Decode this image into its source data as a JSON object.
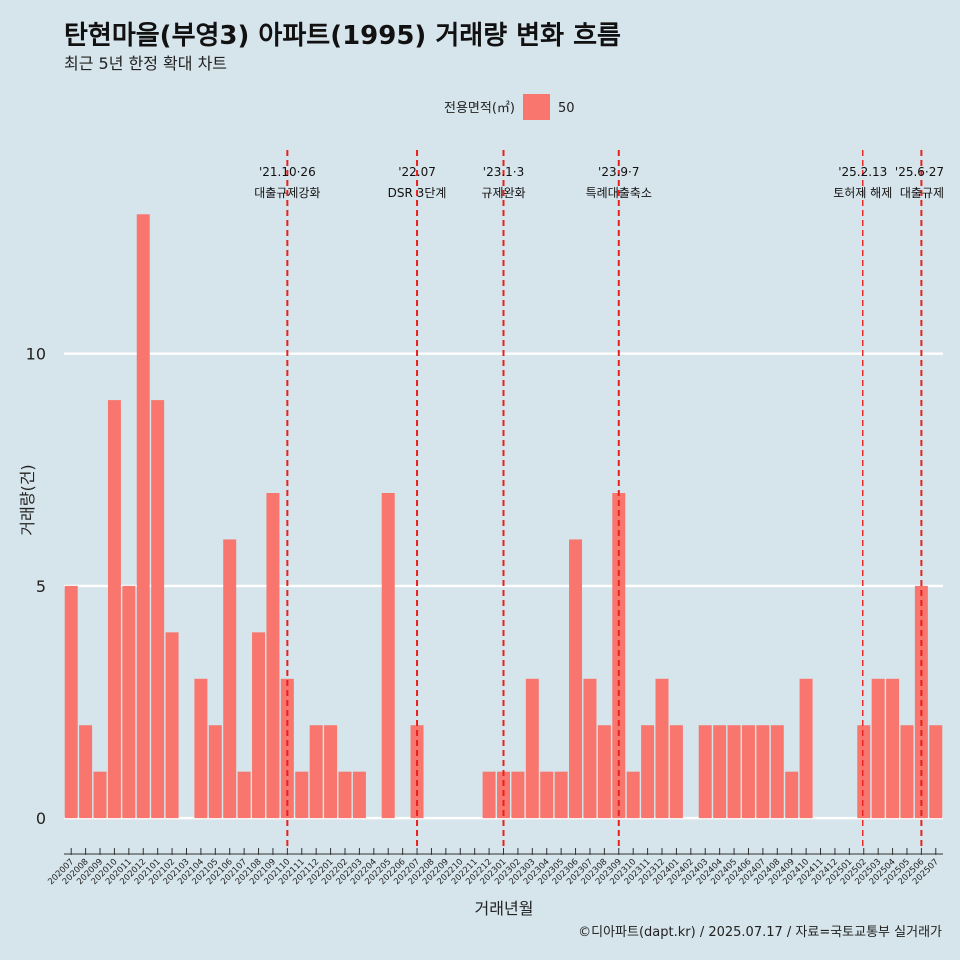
{
  "header": {
    "title": "탄현마을(부영3) 아파트(1995) 거래량 변화 흐름",
    "subtitle": "최근 5년 한정 확대 차트"
  },
  "legend": {
    "title": "전용면적(㎡)",
    "items": [
      {
        "label": "50",
        "color": "#f8766d"
      }
    ],
    "placement": "top"
  },
  "caption": "©디아파트(dapt.kr) / 2025.07.17 / 자료=국토교통부 실거래가",
  "chart_data": {
    "type": "bar",
    "xlabel": "거래년월",
    "ylabel": "거래량(건)",
    "ylim": [
      -0.6,
      14.6
    ],
    "yticks": [
      0,
      5,
      10
    ],
    "grid": "horizontal-major",
    "bar_color": "#f8766d",
    "categories": [
      "202007",
      "202008",
      "202009",
      "202010",
      "202011",
      "202012",
      "202101",
      "202102",
      "202103",
      "202104",
      "202105",
      "202106",
      "202107",
      "202108",
      "202109",
      "202110",
      "202111",
      "202112",
      "202201",
      "202202",
      "202203",
      "202204",
      "202205",
      "202206",
      "202207",
      "202208",
      "202209",
      "202210",
      "202211",
      "202212",
      "202301",
      "202302",
      "202303",
      "202304",
      "202305",
      "202306",
      "202307",
      "202308",
      "202309",
      "202310",
      "202311",
      "202312",
      "202401",
      "202402",
      "202403",
      "202404",
      "202405",
      "202406",
      "202407",
      "202408",
      "202409",
      "202410",
      "202411",
      "202412",
      "202501",
      "202502",
      "202503",
      "202504",
      "202505",
      "202506",
      "202507"
    ],
    "series": [
      {
        "name": "50",
        "values": [
          5,
          2,
          1,
          9,
          5,
          13,
          9,
          4,
          0,
          3,
          2,
          6,
          1,
          4,
          7,
          3,
          1,
          2,
          2,
          1,
          1,
          0,
          7,
          0,
          2,
          0,
          0,
          0,
          0,
          1,
          1,
          1,
          3,
          1,
          1,
          6,
          3,
          2,
          7,
          1,
          2,
          3,
          2,
          0,
          2,
          2,
          2,
          2,
          2,
          2,
          1,
          3,
          0,
          0,
          0,
          2,
          3,
          3,
          2,
          5,
          2
        ]
      }
    ],
    "events": [
      {
        "date": "'21.10·26",
        "label": "대출규제강화",
        "category": "202110",
        "size": "large"
      },
      {
        "date": "'22.07",
        "label": "DSR 3단계",
        "category": "202207",
        "size": "large"
      },
      {
        "date": "'23.1·3",
        "label": "규제완화",
        "category": "202301",
        "size": "large"
      },
      {
        "date": "'23.9·7",
        "label": "특례대출축소",
        "category": "202309",
        "size": "large"
      },
      {
        "date": "'25.2.13",
        "label": "토허제 해제",
        "category": "202502",
        "size": "small"
      },
      {
        "date": "'25.6·27",
        "label": "대출규제",
        "category": "202506",
        "size": "large"
      }
    ]
  }
}
